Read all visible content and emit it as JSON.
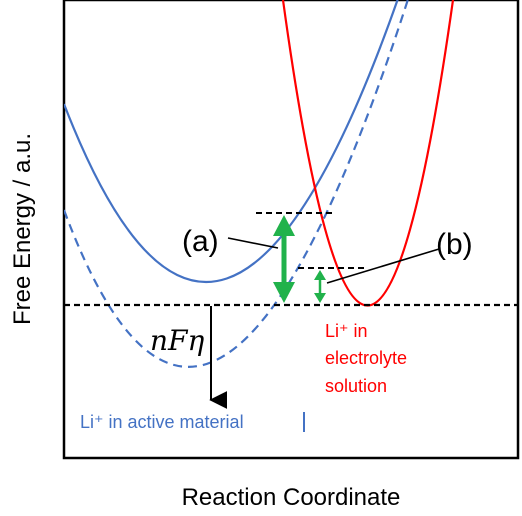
{
  "axes": {
    "ylabel": "Free Energy / a.u.",
    "xlabel": "Reaction Coordinate"
  },
  "labels": {
    "a": "(a)",
    "b": "(b)",
    "overpotential": "nFη",
    "active_material": "Li⁺ in active material",
    "electrolyte_line1": "Li⁺ in",
    "electrolyte_line2": "electrolyte",
    "electrolyte_line3": "solution"
  },
  "colors": {
    "blue_curve": "#4472C4",
    "red_curve": "#FF0000",
    "arrow_green": "#21B24B",
    "frame": "#000000",
    "text": "#000000"
  }
}
